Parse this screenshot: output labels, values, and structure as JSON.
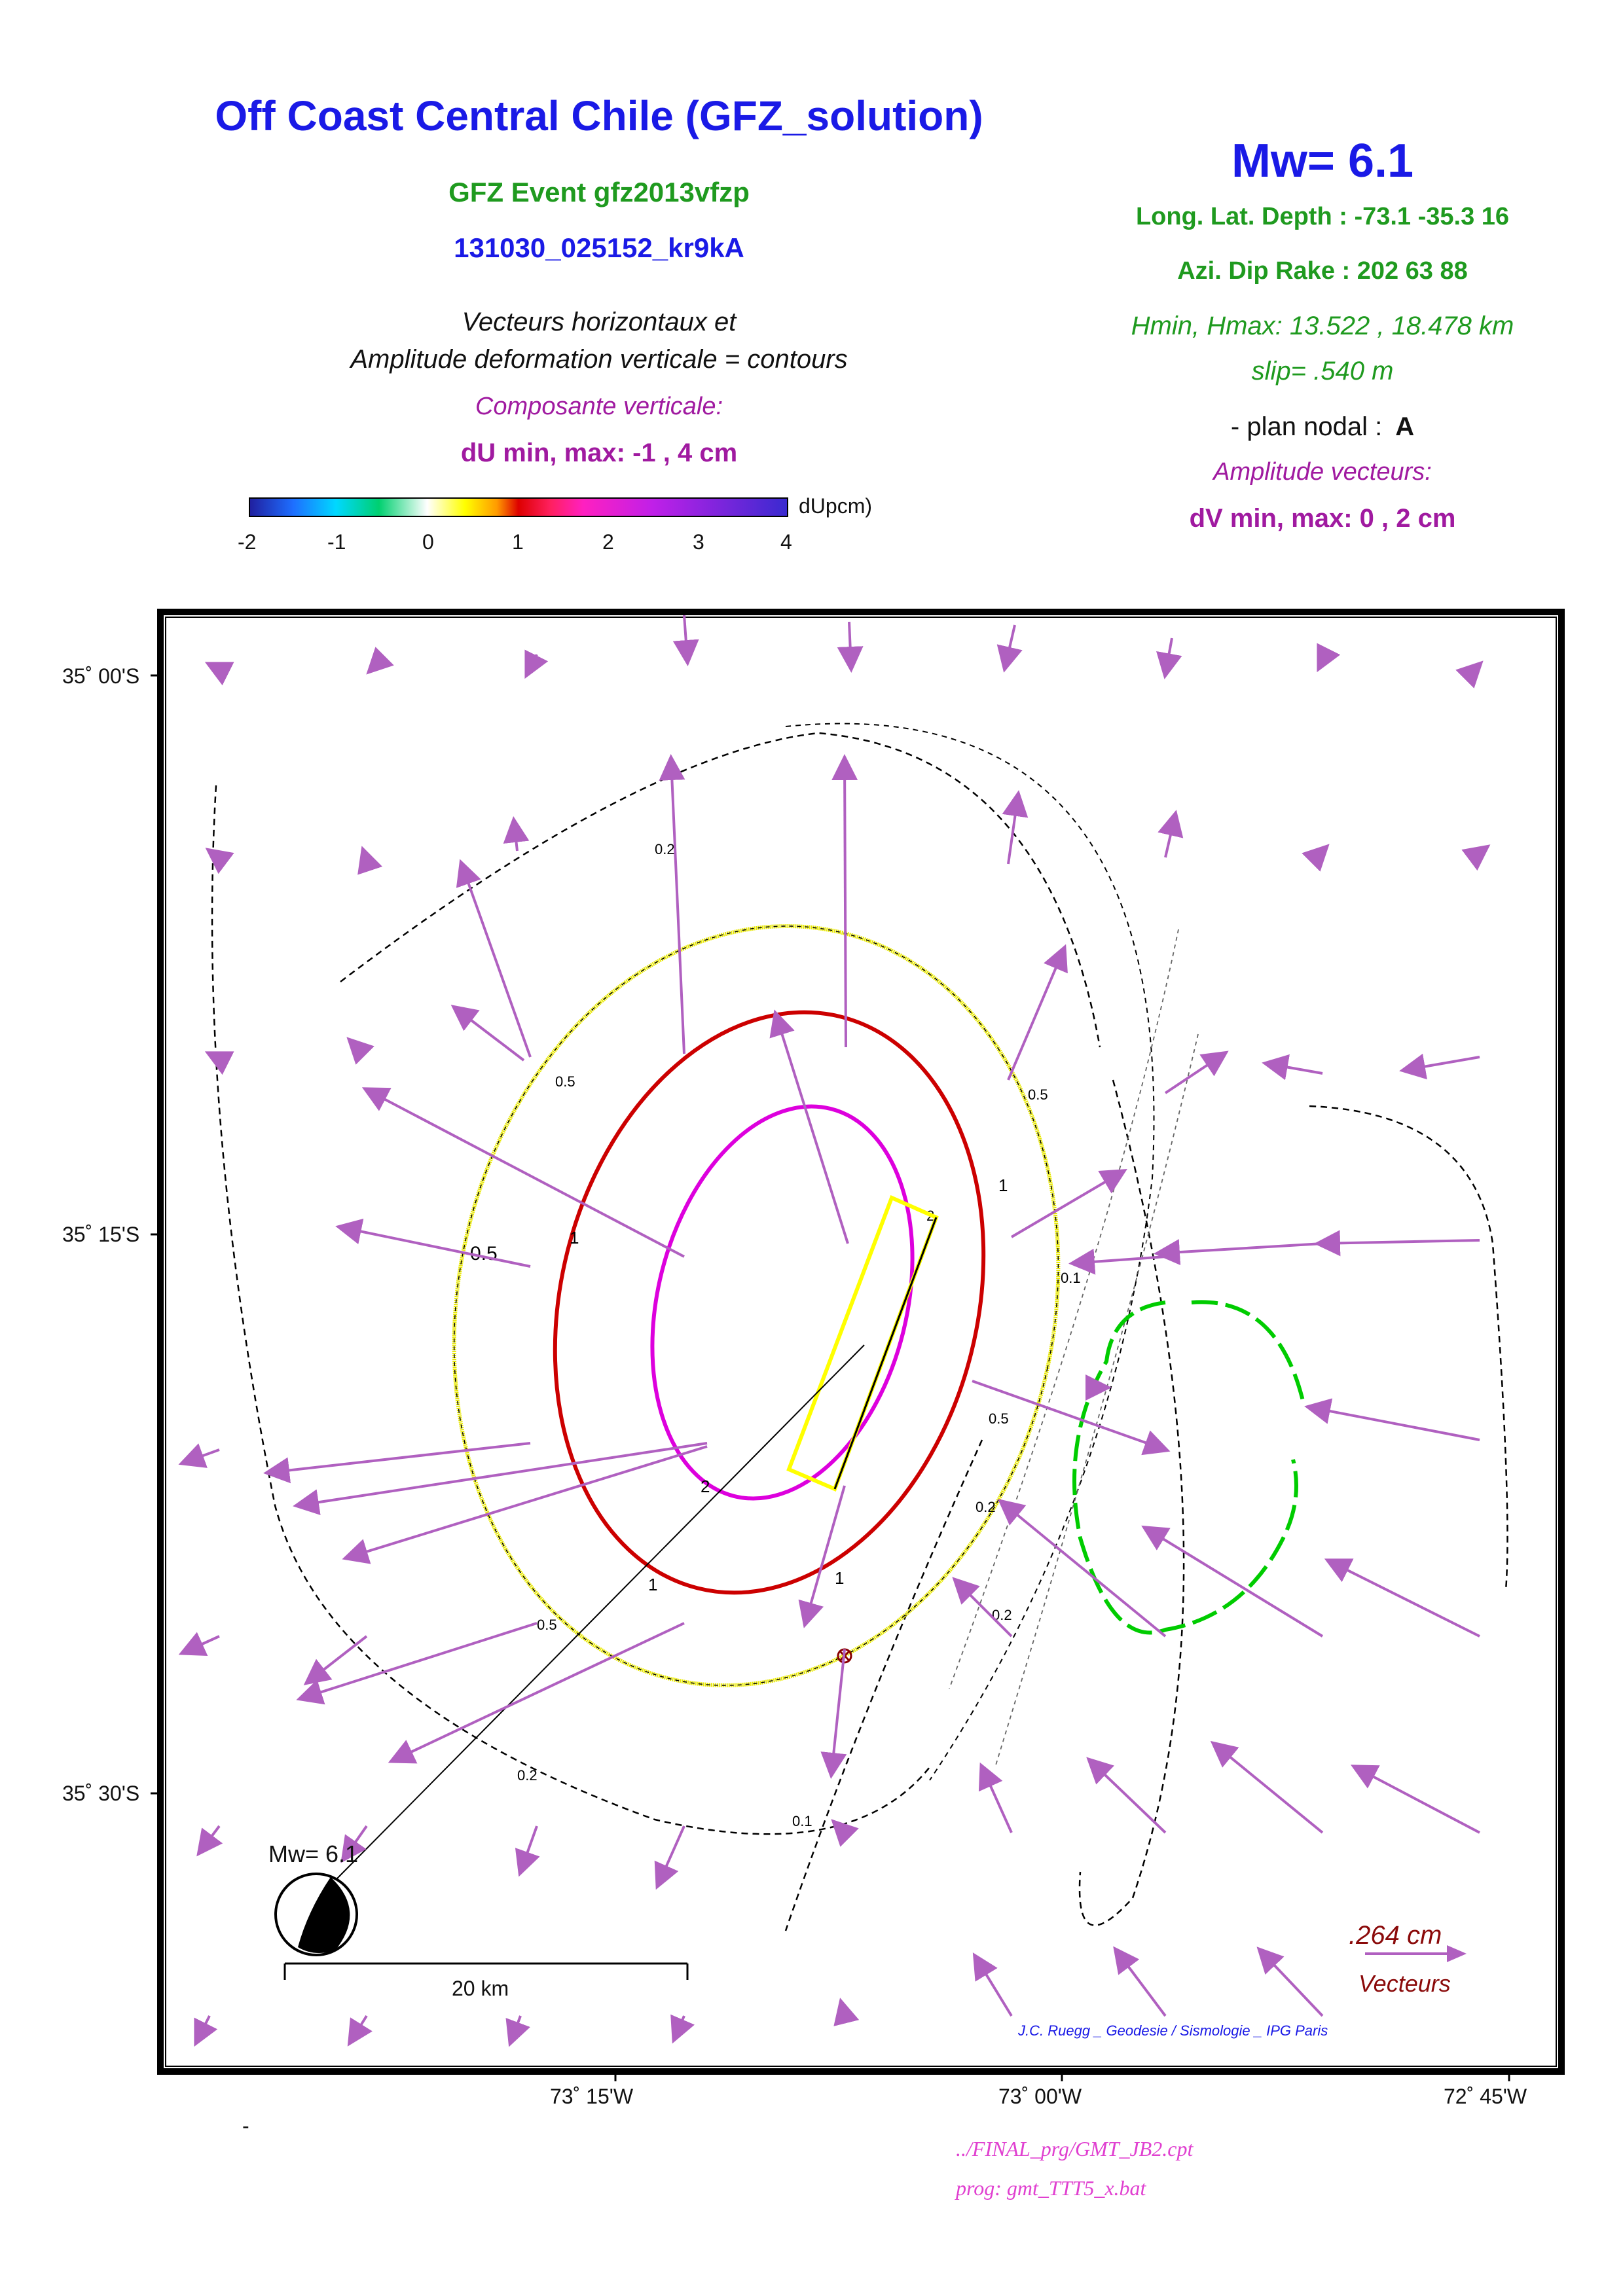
{
  "header": {
    "title": "Off Coast Central Chile (GFZ_solution)",
    "event": "GFZ Event gfz2013vfzp",
    "event_id": "131030_025152_kr9kA",
    "desc_line1": "Vecteurs horizontaux et",
    "desc_line2": "Amplitude deformation verticale = contours",
    "vertical_component": "Composante verticale:",
    "du_minmax": "dU min, max:  -1 , 4 cm"
  },
  "source_params": {
    "mw": "Mw= 6.1",
    "location": "Long. Lat. Depth : -73.1 -35.3 16",
    "mechanism": "Azi.  Dip   Rake :  202 63 88",
    "depth_range": "Hmin, Hmax:  13.522 , 18.478 km",
    "slip": "slip= .540 m",
    "plan_nodal_label": "- plan nodal :",
    "plan_nodal_value": "A",
    "vector_amplitude": "Amplitude vecteurs:",
    "dv_minmax": "dV min, max:  0 , 2 cm"
  },
  "colorbar": {
    "unit": "dUpcm)",
    "ticks": [
      "-2",
      "-1",
      "0",
      "1",
      "2",
      "3",
      "4"
    ]
  },
  "map": {
    "lat_labels": [
      "35˚ 00'S",
      "35˚ 15'S",
      "35˚ 30'S"
    ],
    "lon_labels": [
      "73˚ 15'W",
      "73˚ 00'W",
      "72˚ 45'W"
    ],
    "contour_labels": [
      "0.2",
      "0.5",
      "1",
      "2",
      "0.1"
    ],
    "colors": {
      "contour_0_5": "#e8e800",
      "contour_1": "#cc0000",
      "contour_2": "#dd00dd",
      "contour_neg": "#00cc00",
      "vectors": "#b060c0",
      "fault_box": "#ffff00"
    },
    "beachball_label": "Mw= 6.1",
    "scale_bar_label": "20 km",
    "vector_scale_value": ".264  cm",
    "vector_scale_label": "Vecteurs",
    "credit": "J.C. Ruegg _ Geodesie / Sismologie _ IPG Paris"
  },
  "footer": {
    "dash": "-",
    "cpt_path": "../FINAL_prg/GMT_JB2.cpt",
    "prog": "prog: gmt_TTT5_x.bat"
  }
}
